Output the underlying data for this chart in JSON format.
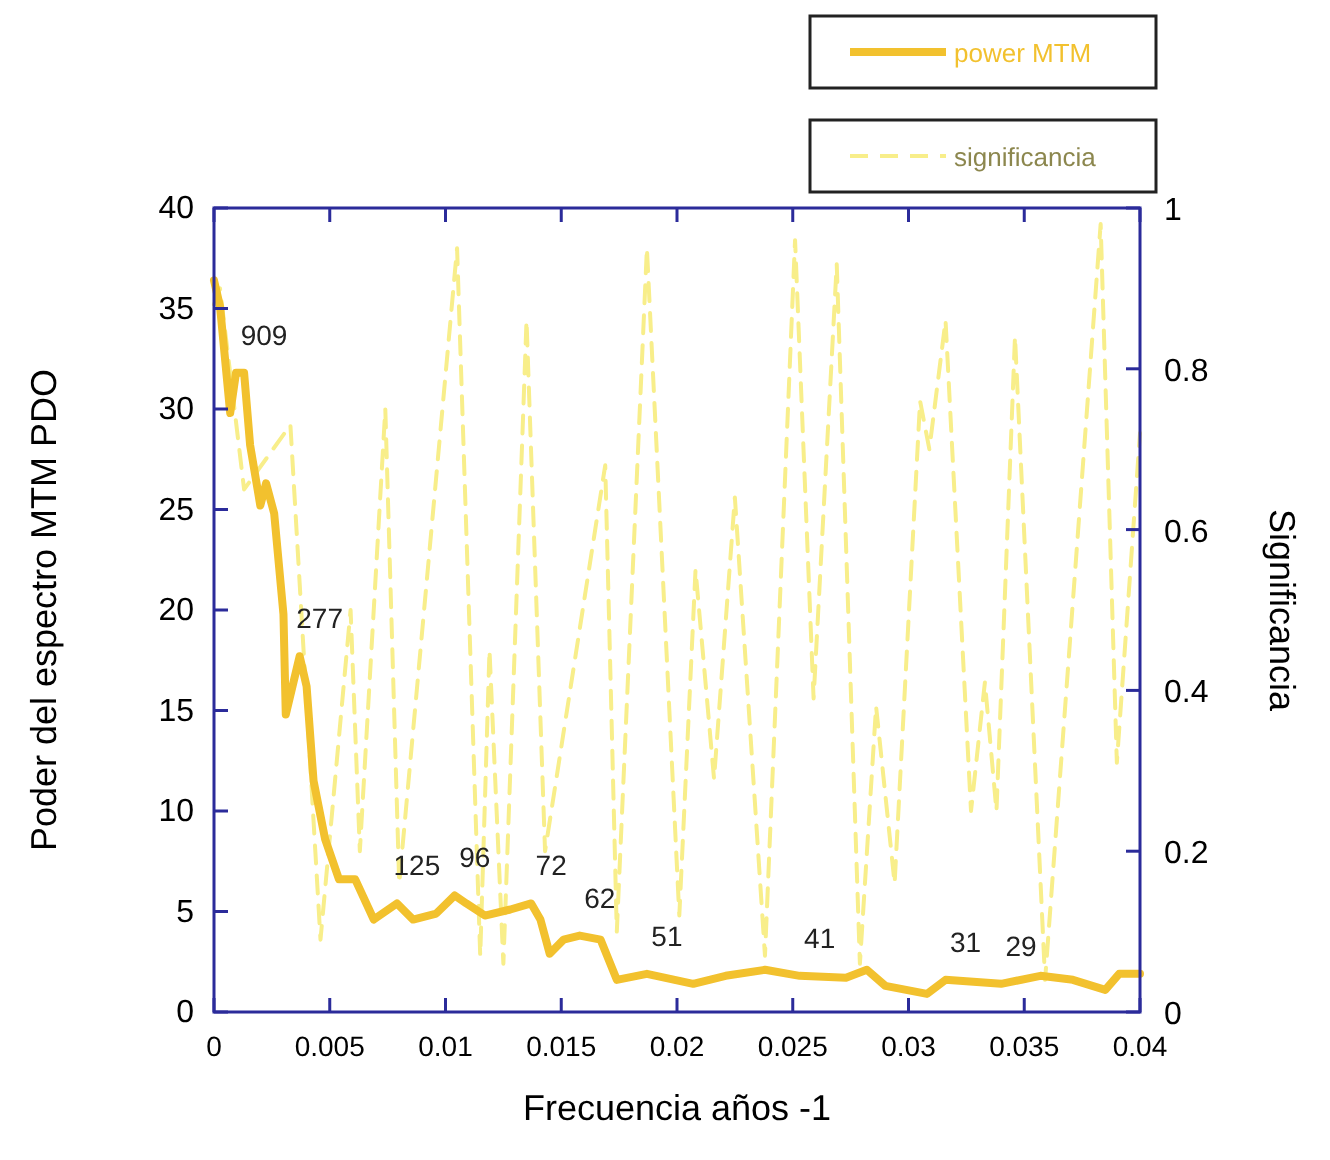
{
  "chart_data": {
    "type": "line",
    "xlabel": "Frecuencia años -1",
    "ylabel": "Poder del espectro MTM PDO",
    "y2label": "Significancia",
    "xlim": [
      0,
      0.04
    ],
    "xticks": [
      0,
      0.005,
      0.01,
      0.015,
      0.02,
      0.025,
      0.03,
      0.035,
      0.04
    ],
    "ylim": [
      0,
      40
    ],
    "yticks": [
      0,
      5,
      10,
      15,
      20,
      25,
      30,
      35,
      40
    ],
    "y2lim": [
      0,
      1
    ],
    "y2ticks": [
      0,
      0.2,
      0.4,
      0.6,
      0.8,
      1
    ],
    "legend": "top right",
    "grid": false,
    "series": [
      {
        "name": "power MTM",
        "color": "#f2c12e",
        "line_style": "solid",
        "x": [
          0,
          0.00026,
          0.0007,
          0.00095,
          0.0013,
          0.00156,
          0.002,
          0.00225,
          0.0026,
          0.003,
          0.0031,
          0.0037,
          0.004,
          0.0043,
          0.0048,
          0.0054,
          0.0061,
          0.0069,
          0.0079,
          0.0086,
          0.0096,
          0.0104,
          0.0109,
          0.0117,
          0.0128,
          0.0137,
          0.0141,
          0.0145,
          0.0151,
          0.0158,
          0.0167,
          0.0174,
          0.0187,
          0.0207,
          0.0221,
          0.0238,
          0.0253,
          0.0273,
          0.0282,
          0.029,
          0.0308,
          0.0316,
          0.034,
          0.0357,
          0.0371,
          0.0385,
          0.0391,
          0.04
        ],
        "values": [
          36.4,
          35.1,
          29.8,
          31.8,
          31.8,
          28.2,
          25.2,
          26.3,
          24.8,
          19.8,
          14.8,
          17.7,
          16.2,
          11.5,
          8.6,
          6.6,
          6.6,
          4.6,
          5.4,
          4.6,
          4.9,
          5.8,
          5.4,
          4.8,
          5.1,
          5.4,
          4.6,
          2.9,
          3.6,
          3.8,
          3.6,
          1.6,
          1.9,
          1.4,
          1.8,
          2.1,
          1.8,
          1.7,
          2.1,
          1.3,
          0.9,
          1.6,
          1.4,
          1.8,
          1.6,
          1.1,
          1.9,
          1.9
        ]
      },
      {
        "name": "significancia",
        "color": "#f8ee8a",
        "axis": "y2",
        "line_style": "dashed",
        "x": [
          0,
          0.00026,
          0.0013,
          0.0033,
          0.0046,
          0.0059,
          0.0063,
          0.0074,
          0.008,
          0.0105,
          0.0115,
          0.0119,
          0.0125,
          0.0135,
          0.0143,
          0.0169,
          0.0174,
          0.0187,
          0.0201,
          0.0208,
          0.0216,
          0.0225,
          0.0238,
          0.0251,
          0.0259,
          0.0269,
          0.0279,
          0.0286,
          0.0294,
          0.0305,
          0.0309,
          0.0316,
          0.0327,
          0.0333,
          0.0338,
          0.0346,
          0.0359,
          0.0383,
          0.039,
          0.04
        ],
        "values": [
          0.88,
          0.9,
          0.65,
          0.73,
          0.09,
          0.5,
          0.2,
          0.75,
          0.16,
          0.95,
          0.07,
          0.45,
          0.06,
          0.86,
          0.2,
          0.68,
          0.1,
          0.95,
          0.12,
          0.55,
          0.29,
          0.64,
          0.07,
          0.96,
          0.39,
          0.93,
          0.06,
          0.38,
          0.16,
          0.76,
          0.7,
          0.86,
          0.25,
          0.41,
          0.25,
          0.84,
          0.04,
          0.98,
          0.31,
          0.72
        ]
      }
    ],
    "annotations": [
      {
        "text": "909",
        "x": 0.0013,
        "y": 31.8
      },
      {
        "text": "277",
        "x": 0.0037,
        "y": 17.7
      },
      {
        "text": "125",
        "x": 0.0079,
        "y": 5.4
      },
      {
        "text": "96",
        "x": 0.0104,
        "y": 5.8
      },
      {
        "text": "72",
        "x": 0.0137,
        "y": 5.4
      },
      {
        "text": "62",
        "x": 0.0158,
        "y": 3.8
      },
      {
        "text": "51",
        "x": 0.0187,
        "y": 1.9
      },
      {
        "text": "41",
        "x": 0.0253,
        "y": 1.8
      },
      {
        "text": "31",
        "x": 0.0316,
        "y": 1.6
      },
      {
        "text": "29",
        "x": 0.034,
        "y": 1.4
      }
    ]
  }
}
